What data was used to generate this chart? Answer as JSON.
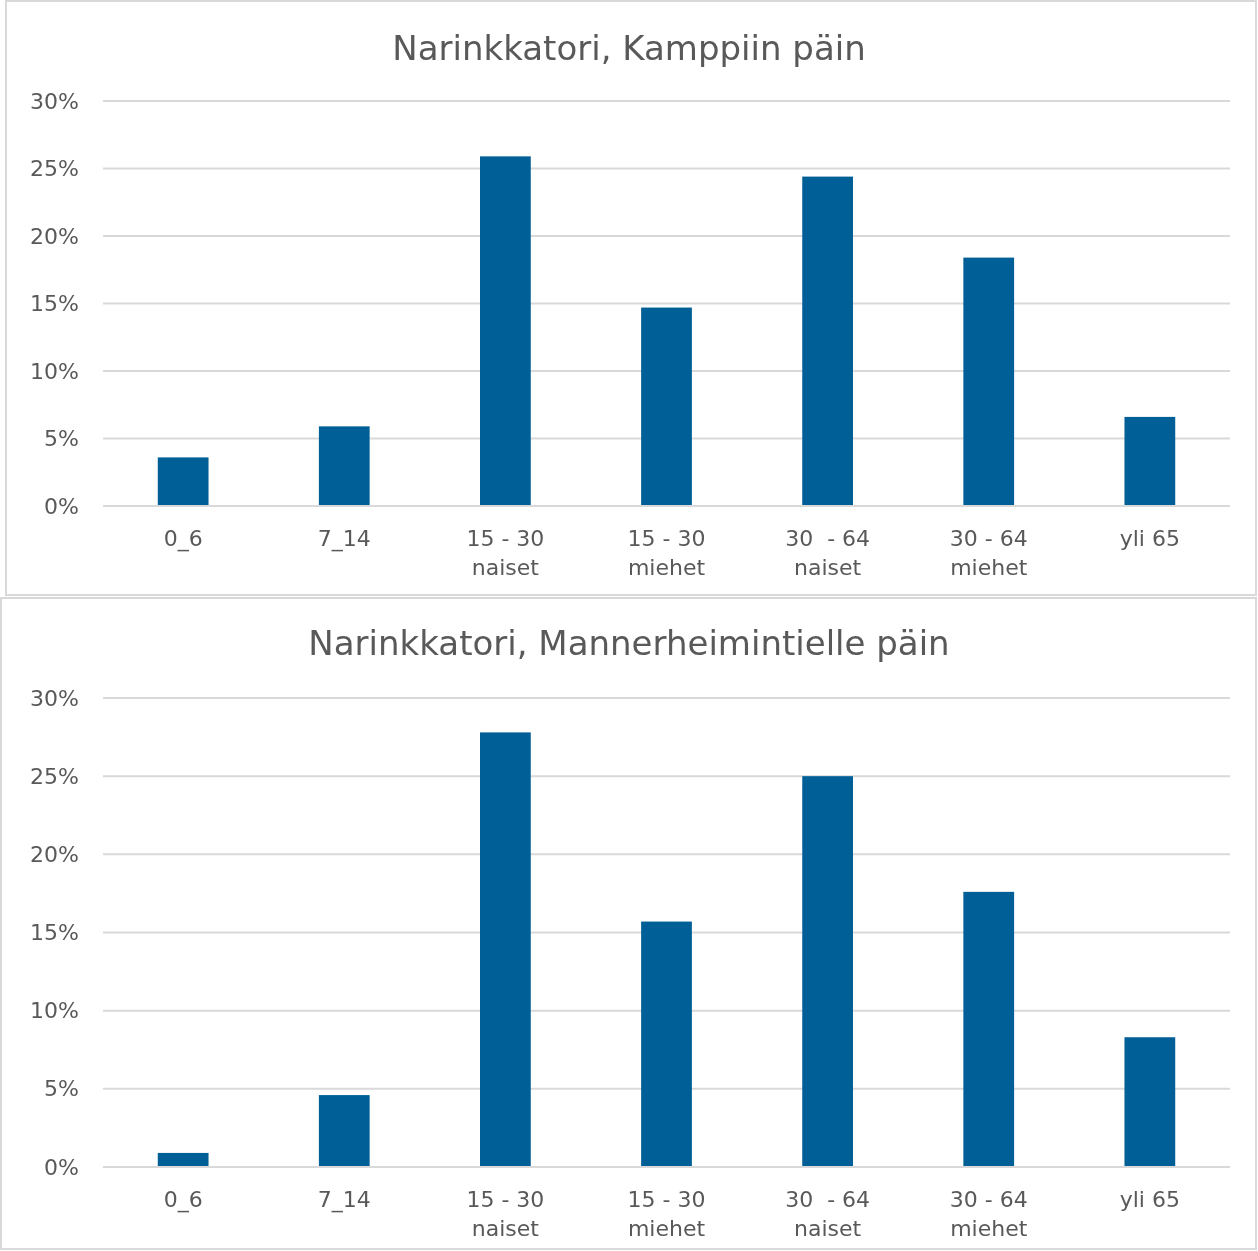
{
  "chart_data": [
    {
      "type": "bar",
      "title": "Narinkkatori, Kamppiin päin",
      "categories": [
        "0_6",
        "7_14",
        "15 - 30\nnaiset",
        "15 - 30\nmiehet",
        "30  - 64\nnaiset",
        "30 - 64\nmiehet",
        "yli 65"
      ],
      "values": [
        3.6,
        5.9,
        25.9,
        14.7,
        24.4,
        18.4,
        6.6
      ],
      "color": "#005f96",
      "ylim": [
        0,
        30
      ],
      "yticks": [
        {
          "value": 0,
          "label": "0%"
        },
        {
          "value": 5,
          "label": "5%"
        },
        {
          "value": 10,
          "label": "10%"
        },
        {
          "value": 15,
          "label": "15%"
        },
        {
          "value": 20,
          "label": "20%"
        },
        {
          "value": 25,
          "label": "25%"
        },
        {
          "value": 30,
          "label": "30%"
        }
      ],
      "grid": "y"
    },
    {
      "type": "bar",
      "title": "Narinkkatori, Mannerheimintielle päin",
      "categories": [
        "0_6",
        "7_14",
        "15 - 30\nnaiset",
        "15 - 30\nmiehet",
        "30  - 64\nnaiset",
        "30 - 64\nmiehet",
        "yli 65"
      ],
      "values": [
        0.9,
        4.6,
        27.8,
        15.7,
        25.0,
        17.6,
        8.3
      ],
      "color": "#005f96",
      "ylim": [
        0,
        30
      ],
      "yticks": [
        {
          "value": 0,
          "label": "0%"
        },
        {
          "value": 5,
          "label": "5%"
        },
        {
          "value": 10,
          "label": "10%"
        },
        {
          "value": 15,
          "label": "15%"
        },
        {
          "value": 20,
          "label": "20%"
        },
        {
          "value": 25,
          "label": "25%"
        },
        {
          "value": 30,
          "label": "30%"
        }
      ],
      "grid": "y"
    }
  ]
}
